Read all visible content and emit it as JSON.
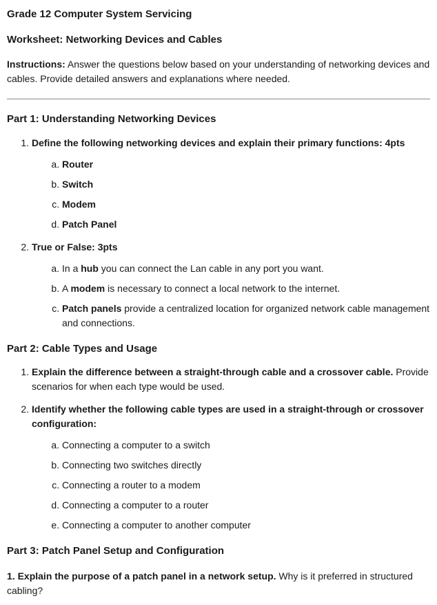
{
  "doc": {
    "title": "Grade 12 Computer System Servicing",
    "subtitle": "Worksheet: Networking Devices and Cables",
    "instructions_label": "Instructions:",
    "instructions_body": " Answer the questions below based on your understanding of networking devices and cables. Provide detailed answers and explanations where needed.",
    "part1": {
      "heading": "Part 1: Understanding Networking Devices",
      "q1": {
        "prompt": "Define the following networking devices and explain their primary functions: 4pts",
        "items": {
          "a": "Router",
          "b": "Switch",
          "c": "Modem",
          "d": "Patch Panel"
        }
      },
      "q2": {
        "prompt": "True or False: 3pts",
        "a_pre": "In a ",
        "a_bold": "hub",
        "a_post": " you can connect the Lan cable in any port you want.",
        "b_pre": "A ",
        "b_bold": "modem",
        "b_post": " is necessary to connect a local network to the internet.",
        "c_bold": "Patch panels",
        "c_post": " provide a centralized location for organized network cable management and connections."
      }
    },
    "part2": {
      "heading": "Part 2: Cable Types and Usage",
      "q1_bold": "Explain the difference between a straight-through cable and a crossover cable.",
      "q1_rest": " Provide scenarios for when each type would be used.",
      "q2_prompt": "Identify whether the following cable types are used in a straight-through or crossover configuration:",
      "items": {
        "a": "Connecting a computer to a switch",
        "b": "Connecting two switches directly",
        "c": "Connecting a router to a modem",
        "d": "Connecting a computer to a router",
        "e": "Connecting a computer to another computer"
      }
    },
    "part3": {
      "heading": "Part 3: Patch Panel Setup and Configuration",
      "q1_num": "1. ",
      "q1_bold": "Explain the purpose of a patch panel in a network setup.",
      "q1_rest": " Why is it preferred in structured cabling?"
    }
  }
}
